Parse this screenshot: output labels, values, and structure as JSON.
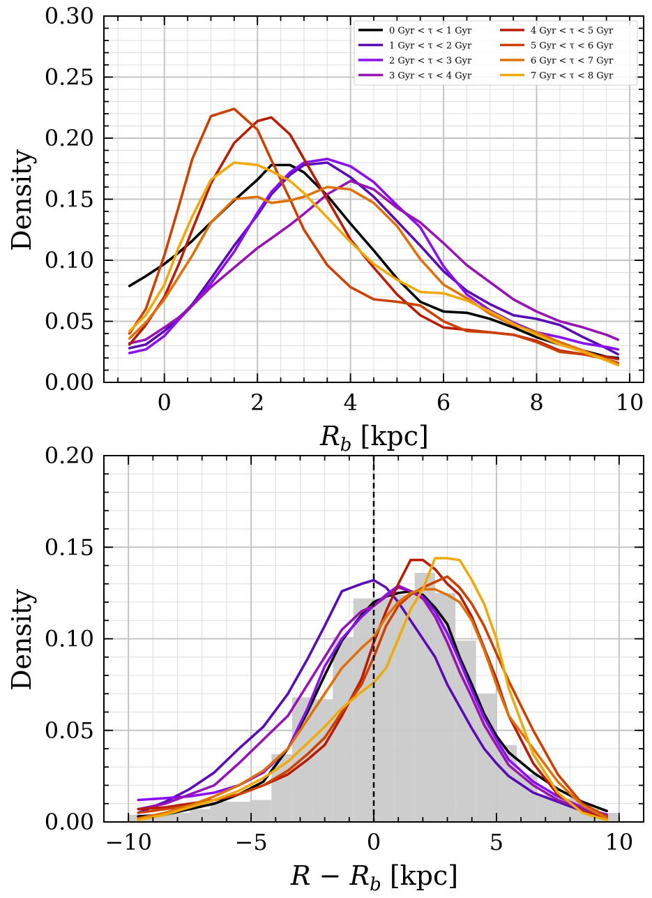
{
  "chart_data": [
    {
      "type": "line",
      "xlabel_var": "R",
      "xlabel_sub": "b",
      "xlabel_unit": " [kpc]",
      "ylabel": "Density",
      "xlim": [
        -1.3,
        10.3
      ],
      "ylim": [
        0,
        0.3
      ],
      "xticks": [
        0,
        2,
        4,
        6,
        8,
        10
      ],
      "xtick_labels": [
        "0",
        "2",
        "4",
        "6",
        "8",
        "10"
      ],
      "yticks": [
        0,
        0.05,
        0.1,
        0.15,
        0.2,
        0.25,
        0.3
      ],
      "ytick_labels": [
        "0.00",
        "0.05",
        "0.10",
        "0.15",
        "0.20",
        "0.25",
        "0.30"
      ],
      "grid": true,
      "legend_placement": "top-right",
      "x": [
        -0.75,
        -0.4,
        0.0,
        0.3,
        0.6,
        1.0,
        1.5,
        2.0,
        2.3,
        2.7,
        3.0,
        3.5,
        4.0,
        4.5,
        5.0,
        5.5,
        6.0,
        6.5,
        7.0,
        7.5,
        8.0,
        8.5,
        9.0,
        9.5,
        9.75
      ],
      "series": [
        {
          "name": "0 Gyr < τ < 1 Gyr",
          "color": "#000000",
          "values": [
            0.079,
            0.087,
            0.097,
            0.106,
            0.116,
            0.131,
            0.149,
            0.166,
            0.178,
            0.178,
            0.172,
            0.153,
            0.13,
            0.108,
            0.085,
            0.066,
            0.058,
            0.057,
            0.052,
            0.045,
            0.037,
            0.031,
            0.026,
            0.021,
            0.02
          ]
        },
        {
          "name": "1 Gyr < τ < 2 Gyr",
          "color": "#5a0cb4",
          "values": [
            0.028,
            0.031,
            0.042,
            0.052,
            0.064,
            0.085,
            0.112,
            0.137,
            0.154,
            0.17,
            0.178,
            0.18,
            0.168,
            0.152,
            0.132,
            0.112,
            0.091,
            0.075,
            0.064,
            0.055,
            0.052,
            0.047,
            0.037,
            0.028,
            0.023
          ]
        },
        {
          "name": "2 Gyr < τ < 3 Gyr",
          "color": "#8a0ff0",
          "values": [
            0.024,
            0.027,
            0.038,
            0.051,
            0.063,
            0.081,
            0.107,
            0.139,
            0.156,
            0.172,
            0.18,
            0.183,
            0.177,
            0.164,
            0.145,
            0.127,
            0.095,
            0.072,
            0.059,
            0.049,
            0.041,
            0.037,
            0.032,
            0.029,
            0.027
          ]
        },
        {
          "name": "3 Gyr < τ < 4 Gyr",
          "color": "#9713b3",
          "values": [
            0.032,
            0.035,
            0.045,
            0.053,
            0.063,
            0.078,
            0.094,
            0.11,
            0.118,
            0.129,
            0.138,
            0.154,
            0.165,
            0.158,
            0.143,
            0.131,
            0.114,
            0.096,
            0.082,
            0.068,
            0.058,
            0.05,
            0.045,
            0.039,
            0.035
          ]
        },
        {
          "name": "4 Gyr < τ < 5 Gyr",
          "color": "#b81c05",
          "values": [
            0.031,
            0.047,
            0.07,
            0.096,
            0.125,
            0.163,
            0.196,
            0.214,
            0.217,
            0.203,
            0.183,
            0.15,
            0.117,
            0.094,
            0.072,
            0.055,
            0.045,
            0.043,
            0.041,
            0.039,
            0.034,
            0.026,
            0.023,
            0.021,
            0.019
          ]
        },
        {
          "name": "5 Gyr < τ < 6 Gyr",
          "color": "#cc4100",
          "values": [
            0.04,
            0.06,
            0.104,
            0.143,
            0.183,
            0.218,
            0.224,
            0.207,
            0.182,
            0.15,
            0.125,
            0.096,
            0.078,
            0.068,
            0.066,
            0.063,
            0.05,
            0.042,
            0.041,
            0.039,
            0.033,
            0.025,
            0.023,
            0.019,
            0.016
          ]
        },
        {
          "name": "6 Gyr < τ < 7 Gyr",
          "color": "#de7108",
          "values": [
            0.036,
            0.049,
            0.068,
            0.086,
            0.104,
            0.131,
            0.15,
            0.152,
            0.147,
            0.149,
            0.152,
            0.16,
            0.158,
            0.147,
            0.128,
            0.101,
            0.08,
            0.069,
            0.056,
            0.047,
            0.041,
            0.033,
            0.026,
            0.019,
            0.015
          ]
        },
        {
          "name": "7 Gyr < τ < 8 Gyr",
          "color": "#eeaa0a",
          "values": [
            0.042,
            0.055,
            0.08,
            0.11,
            0.136,
            0.166,
            0.18,
            0.178,
            0.173,
            0.165,
            0.155,
            0.135,
            0.115,
            0.097,
            0.084,
            0.074,
            0.073,
            0.067,
            0.058,
            0.048,
            0.039,
            0.031,
            0.025,
            0.018,
            0.014
          ]
        }
      ]
    },
    {
      "type": "line",
      "xlabel_var": "R − R",
      "xlabel_sub": "b",
      "xlabel_unit": " [kpc]",
      "ylabel": "Density",
      "xlim": [
        -11,
        11
      ],
      "ylim": [
        0,
        0.2
      ],
      "xticks": [
        -10,
        -5,
        0,
        5,
        10
      ],
      "xtick_labels": [
        "−10",
        "−5",
        "0",
        "5",
        "10"
      ],
      "yticks": [
        0,
        0.05,
        0.1,
        0.15,
        0.2
      ],
      "ytick_labels": [
        "0.00",
        "0.05",
        "0.10",
        "0.15",
        "0.20"
      ],
      "grid": true,
      "vline_x": 0,
      "histogram": {
        "color": "#cacaca",
        "bin_edges": [
          -10,
          -9.17,
          -8.33,
          -7.5,
          -6.67,
          -5.83,
          -5,
          -4.17,
          -3.33,
          -2.5,
          -1.67,
          -0.83,
          0,
          0.83,
          1.67,
          2.5,
          3.33,
          4.17,
          5,
          5.83,
          6.67,
          7.5,
          8.33,
          9.17,
          10
        ],
        "values": [
          0.004,
          0.004,
          0.005,
          0.007,
          0.011,
          0.011,
          0.012,
          0.037,
          0.068,
          0.067,
          0.101,
          0.122,
          0.122,
          0.124,
          0.136,
          0.125,
          0.099,
          0.07,
          0.042,
          0.026,
          0.015,
          0.013,
          0.007,
          0.005
        ]
      },
      "x": [
        -9.6,
        -8.5,
        -7.5,
        -6.5,
        -5.5,
        -4.5,
        -3.5,
        -2.7,
        -2.0,
        -1.3,
        -0.5,
        0.0,
        0.5,
        1.0,
        1.5,
        2.0,
        2.5,
        3.0,
        3.5,
        4.0,
        4.5,
        5.0,
        5.5,
        6.5,
        7.5,
        8.5,
        9.5
      ],
      "series": [
        {
          "name": "0 Gyr < τ < 1 Gyr",
          "color": "#000000",
          "values": [
            0.003,
            0.004,
            0.007,
            0.01,
            0.015,
            0.022,
            0.04,
            0.06,
            0.08,
            0.099,
            0.113,
            0.12,
            0.123,
            0.125,
            0.126,
            0.124,
            0.117,
            0.108,
            0.09,
            0.075,
            0.059,
            0.047,
            0.038,
            0.027,
            0.018,
            0.011,
            0.006
          ]
        },
        {
          "name": "1 Gyr < τ < 2 Gyr",
          "color": "#5a0cb4",
          "values": [
            0.005,
            0.011,
            0.018,
            0.027,
            0.04,
            0.052,
            0.07,
            0.089,
            0.107,
            0.126,
            0.13,
            0.132,
            0.128,
            0.12,
            0.11,
            0.1,
            0.09,
            0.075,
            0.063,
            0.051,
            0.04,
            0.032,
            0.025,
            0.016,
            0.011,
            0.006,
            0.003
          ]
        },
        {
          "name": "2 Gyr < τ < 3 Gyr",
          "color": "#8a0ff0",
          "values": [
            0.012,
            0.013,
            0.014,
            0.016,
            0.02,
            0.027,
            0.04,
            0.062,
            0.085,
            0.1,
            0.112,
            0.118,
            0.124,
            0.129,
            0.126,
            0.123,
            0.115,
            0.103,
            0.088,
            0.072,
            0.057,
            0.045,
            0.034,
            0.022,
            0.014,
            0.008,
            0.004
          ]
        },
        {
          "name": "3 Gyr < τ < 4 Gyr",
          "color": "#9713b3",
          "values": [
            0.007,
            0.01,
            0.015,
            0.02,
            0.032,
            0.045,
            0.058,
            0.075,
            0.09,
            0.105,
            0.115,
            0.118,
            0.123,
            0.128,
            0.126,
            0.122,
            0.112,
            0.098,
            0.082,
            0.068,
            0.053,
            0.042,
            0.031,
            0.02,
            0.012,
            0.007,
            0.003
          ]
        },
        {
          "name": "4 Gyr < τ < 5 Gyr",
          "color": "#b81c05",
          "values": [
            0.007,
            0.008,
            0.01,
            0.012,
            0.015,
            0.02,
            0.026,
            0.034,
            0.042,
            0.058,
            0.078,
            0.098,
            0.115,
            0.13,
            0.143,
            0.143,
            0.138,
            0.13,
            0.124,
            0.112,
            0.095,
            0.078,
            0.058,
            0.032,
            0.015,
            0.006,
            0.002
          ]
        },
        {
          "name": "5 Gyr < τ < 6 Gyr",
          "color": "#cc4100",
          "values": [
            0.005,
            0.007,
            0.009,
            0.012,
            0.015,
            0.02,
            0.028,
            0.037,
            0.046,
            0.06,
            0.075,
            0.09,
            0.107,
            0.118,
            0.124,
            0.128,
            0.131,
            0.134,
            0.128,
            0.119,
            0.107,
            0.092,
            0.077,
            0.05,
            0.026,
            0.01,
            0.003
          ]
        },
        {
          "name": "6 Gyr < τ < 7 Gyr",
          "color": "#de7108",
          "values": [
            0.002,
            0.005,
            0.009,
            0.014,
            0.02,
            0.028,
            0.04,
            0.056,
            0.07,
            0.084,
            0.095,
            0.101,
            0.112,
            0.12,
            0.125,
            0.127,
            0.127,
            0.124,
            0.12,
            0.11,
            0.094,
            0.075,
            0.058,
            0.04,
            0.022,
            0.009,
            0.002
          ]
        },
        {
          "name": "7 Gyr < τ < 8 Gyr",
          "color": "#eeaa0a",
          "values": [
            0.001,
            0.004,
            0.008,
            0.012,
            0.017,
            0.024,
            0.033,
            0.043,
            0.052,
            0.062,
            0.071,
            0.076,
            0.084,
            0.1,
            0.116,
            0.127,
            0.144,
            0.144,
            0.143,
            0.132,
            0.119,
            0.1,
            0.073,
            0.037,
            0.016,
            0.005,
            0.001
          ]
        }
      ]
    }
  ]
}
